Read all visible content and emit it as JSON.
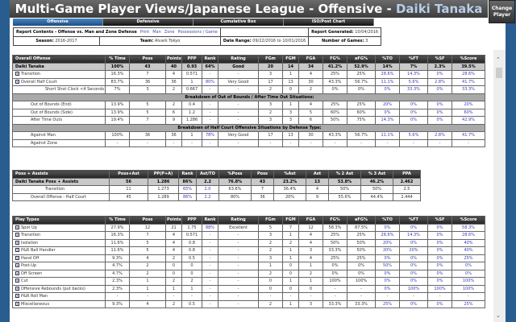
{
  "header": {
    "title": "Multi-Game Player Views/Japanese League - Offensive - ",
    "player": "Daiki Tanaka",
    "number": "#24",
    "change_player": "Change Player"
  },
  "tabs": [
    "Offensive",
    "Defensive",
    "Cumulative Box",
    "ISO/Post Chart"
  ],
  "info": {
    "contents_label": "Report Contents - Offense vs. Man and Zone Defense",
    "links": [
      "Print",
      "Man",
      "Zone",
      "Possessions / Game"
    ],
    "generated_label": "Report Generated:",
    "generated": "10/04/2016",
    "season_label": "Season:",
    "season": "2016-2017",
    "team_label": "Team:",
    "team": "Alvark Tokyo",
    "range_label": "Date Range:",
    "range": "09/22/2016 to 10/01/2016",
    "games_label": "Number of Games:",
    "games": "3"
  },
  "overall": {
    "headers": [
      "Overall Offense",
      "% Time",
      "Poss",
      "Points",
      "PPP",
      "Rank",
      "Rating",
      "FGm",
      "FGM",
      "FGA",
      "FG%",
      "aFG%",
      "%TO",
      "%FT",
      "%SF",
      "%Score"
    ],
    "rows": [
      {
        "t": "main",
        "c": [
          "Daiki Tanaka",
          "100%",
          "43",
          "40",
          "0.93",
          "64%",
          "Good",
          "20",
          "14",
          "34",
          "41.2%",
          "52.9%",
          "14%",
          "7%",
          "2.3%",
          "39.5%"
        ]
      },
      {
        "ex": true,
        "c": [
          "Transition",
          "16.3%",
          "7",
          "4",
          "0.571",
          "-",
          "-",
          "3",
          "1",
          "4",
          "25%",
          "25%",
          "28.6%",
          "14.3%",
          "0%",
          "28.6%"
        ]
      },
      {
        "ex": true,
        "c": [
          "Overall Half Court",
          "83.7%",
          "36",
          "36",
          "1",
          "80%",
          "Very Good",
          "17",
          "13",
          "30",
          "43.3%",
          "56.7%",
          "11.1%",
          "5.6%",
          "2.8%",
          "41.7%"
        ]
      },
      {
        "ind": 2,
        "c": [
          "Short Shot Clock <4 Seconds",
          "7%",
          "3",
          "2",
          "0.667",
          "-",
          "-",
          "2",
          "0",
          "2",
          "0%",
          "0%",
          "0%",
          "33.3%",
          "0%",
          "33.3%"
        ]
      },
      {
        "t": "sec",
        "c": [
          "Breakdown of Out of Bounds / After Time Out Situations:"
        ]
      },
      {
        "ind": 1,
        "c": [
          "Out of Bounds (End)",
          "13.9%",
          "5",
          "2",
          "0.4",
          "-",
          "-",
          "3",
          "1",
          "4",
          "25%",
          "25%",
          "20%",
          "0%",
          "0%",
          "20%"
        ]
      },
      {
        "ind": 1,
        "c": [
          "Out of Bounds (Side)",
          "13.9%",
          "5",
          "6",
          "1.2",
          "-",
          "-",
          "2",
          "3",
          "5",
          "60%",
          "60%",
          "0%",
          "0%",
          "0%",
          "60%"
        ]
      },
      {
        "ind": 1,
        "c": [
          "After Time Outs",
          "19.4%",
          "7",
          "9",
          "1.286",
          "-",
          "-",
          "3",
          "3",
          "6",
          "50%",
          "75%",
          "14.3%",
          "0%",
          "0%",
          "42.9%"
        ]
      },
      {
        "t": "sec",
        "c": [
          "Breakdown of Half Court Offensive Situations by Defense Type:"
        ]
      },
      {
        "ind": 1,
        "c": [
          "Against Man",
          "100%",
          "36",
          "36",
          "1",
          "78%",
          "Very Good",
          "17",
          "13",
          "30",
          "43.3%",
          "56.7%",
          "11.1%",
          "5.6%",
          "2.8%",
          "41.7%"
        ]
      },
      {
        "ind": 1,
        "c": [
          "Against Zone",
          "-",
          "-",
          "-",
          "-",
          "-",
          "-",
          "-",
          "-",
          "-",
          "-",
          "-",
          "-",
          "-",
          "-",
          "-"
        ]
      }
    ]
  },
  "assists": {
    "headers": [
      "Poss + Assists",
      "Poss+Ast",
      "PP(P+A)",
      "Rank",
      "Ast/TO",
      "%Poss",
      "Poss",
      "%Ast",
      "Ast",
      "% 2 Ast",
      "% 3 Ast",
      "PPA"
    ],
    "rows": [
      {
        "t": "main",
        "c": [
          "Daiki Tanaka Poss + Assists",
          "56",
          "1.286",
          "86%",
          "2.2",
          "76.8%",
          "43",
          "23.2%",
          "13",
          "53.8%",
          "46.2%",
          "2.462"
        ]
      },
      {
        "ind": 2,
        "c": [
          "Transition",
          "11",
          "1.273",
          "65%",
          "2.0",
          "63.6%",
          "7",
          "36.4%",
          "4",
          "50%",
          "50%",
          "2.5"
        ]
      },
      {
        "ind": 1,
        "c": [
          "Overall Offense - Half Court",
          "45",
          "1.289",
          "86%",
          "2.2",
          "80%",
          "36",
          "20%",
          "9",
          "55.6%",
          "44.4%",
          "2.444"
        ]
      }
    ]
  },
  "playtypes": {
    "headers": [
      "Play Types",
      "% Time",
      "Poss",
      "Points",
      "PPP",
      "Rank",
      "Rating",
      "FGm",
      "FGM",
      "FGA",
      "FG%",
      "aFG%",
      "%TO",
      "%FT",
      "%SF",
      "%Score"
    ],
    "rows": [
      {
        "ex": true,
        "c": [
          "Spot Up",
          "27.9%",
          "12",
          "21",
          "1.75",
          "88%",
          "Excellent",
          "5",
          "7",
          "12",
          "58.3%",
          "87.5%",
          "0%",
          "0%",
          "0%",
          "58.3%"
        ]
      },
      {
        "ex": true,
        "c": [
          "Transition",
          "16.3%",
          "7",
          "4",
          "0.571",
          "-",
          "-",
          "3",
          "1",
          "4",
          "25%",
          "25%",
          "28.6%",
          "14.3%",
          "0%",
          "28.6%"
        ]
      },
      {
        "ex": true,
        "c": [
          "Isolation",
          "11.6%",
          "5",
          "4",
          "0.8",
          "-",
          "-",
          "2",
          "2",
          "4",
          "50%",
          "50%",
          "20%",
          "0%",
          "0%",
          "40%"
        ]
      },
      {
        "ex": true,
        "c": [
          "P&R Ball Handler",
          "11.6%",
          "5",
          "4",
          "0.8",
          "-",
          "-",
          "2",
          "1",
          "3",
          "33.3%",
          "50%",
          "20%",
          "20%",
          "0%",
          "40%"
        ]
      },
      {
        "ex": true,
        "c": [
          "Hand Off",
          "9.3%",
          "4",
          "2",
          "0.5",
          "-",
          "-",
          "3",
          "1",
          "4",
          "25%",
          "25%",
          "0%",
          "0%",
          "0%",
          "25%"
        ]
      },
      {
        "ex": true,
        "c": [
          "Post-Up",
          "4.7%",
          "2",
          "0",
          "0",
          "-",
          "-",
          "1",
          "0",
          "1",
          "0%",
          "0%",
          "50%",
          "0%",
          "0%",
          "0%"
        ]
      },
      {
        "ex": true,
        "c": [
          "Off Screen",
          "4.7%",
          "2",
          "0",
          "0",
          "-",
          "-",
          "2",
          "0",
          "2",
          "0%",
          "0%",
          "0%",
          "0%",
          "0%",
          "0%"
        ]
      },
      {
        "ex": true,
        "c": [
          "Cut",
          "2.3%",
          "1",
          "2",
          "2",
          "-",
          "-",
          "0",
          "1",
          "1",
          "100%",
          "100%",
          "0%",
          "0%",
          "0%",
          "100%"
        ]
      },
      {
        "ex": true,
        "c": [
          "Offensive Rebounds (put backs)",
          "2.3%",
          "1",
          "1",
          "1",
          "-",
          "-",
          "0",
          "0",
          "0",
          "-",
          "-",
          "0%",
          "100%",
          "100%",
          "100%"
        ]
      },
      {
        "ex": true,
        "c": [
          "P&R Roll Man",
          "-",
          "-",
          "-",
          "-",
          "-",
          "-",
          "-",
          "-",
          "-",
          "-",
          "-",
          "-",
          "-",
          "-",
          "-"
        ]
      },
      {
        "ex": true,
        "c": [
          "Miscellaneous",
          "9.3%",
          "4",
          "2",
          "0.5",
          "-",
          "-",
          "2",
          "1",
          "3",
          "33.3%",
          "33.3%",
          "25%",
          "0%",
          "0%",
          "25%"
        ]
      }
    ]
  },
  "colors": {
    "accent": "#3a3ab8",
    "frame": "#2a5d8f",
    "tab_active": "#2f6aa6"
  }
}
